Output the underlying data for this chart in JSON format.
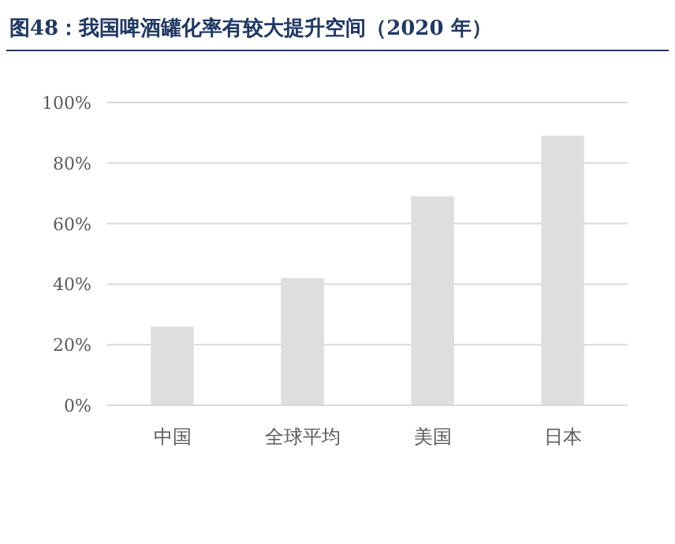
{
  "chart_data": {
    "type": "bar",
    "title": "图48：我国啤酒罐化率有较大提升空间（2020 年）",
    "categories": [
      "中国",
      "全球平均",
      "美国",
      "日本"
    ],
    "values": [
      26,
      42,
      69,
      89
    ],
    "color": "#dedede",
    "ylim": [
      0,
      100
    ],
    "yticks": [
      {
        "value": 0,
        "label": "0%"
      },
      {
        "value": 20,
        "label": "20%"
      },
      {
        "value": 40,
        "label": "40%"
      },
      {
        "value": 60,
        "label": "60%"
      },
      {
        "value": 80,
        "label": "80%"
      },
      {
        "value": 100,
        "label": "100%"
      }
    ],
    "grid": "y"
  }
}
